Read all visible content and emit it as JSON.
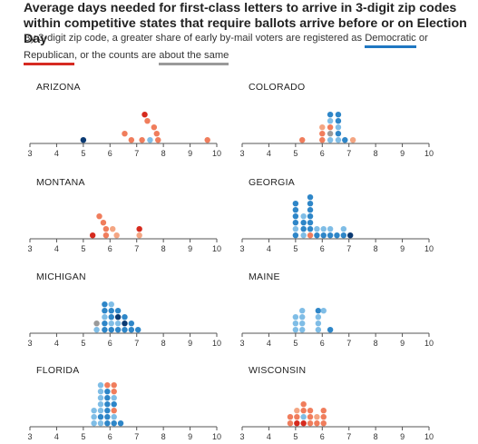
{
  "title": "Average days needed for first-class letters to arrive in 3-digit zip codes within competitive states that require ballots arrive before or on Election Day",
  "subtitle": {
    "text_1": "By 3-digit zip code, a greater share of early by-mail voters are registered as ",
    "dem_label": "Democratic",
    "text_2": " or ",
    "rep_label": "Republican",
    "text_3": ", or the counts are ",
    "same_label": "about the same"
  },
  "colors": {
    "dem_strong": "#0b3a73",
    "dem": "#2e86c8",
    "dem_light": "#7fbde6",
    "same": "#9a9a9a",
    "rep_light": "#f4a582",
    "rep": "#f07d5c",
    "rep_strong": "#d62a1e",
    "axis": "#555555"
  },
  "chart_data": [
    {
      "type": "scatter",
      "title": "ARIZONA",
      "xlim": [
        3,
        10
      ],
      "xticks": [
        "3",
        "4",
        "5",
        "6",
        "7",
        "8",
        "9",
        "10"
      ],
      "points": [
        {
          "x": 5.0,
          "stack": 0,
          "group": "dem_strong"
        },
        {
          "x": 6.55,
          "stack": 1,
          "group": "rep"
        },
        {
          "x": 6.8,
          "stack": 0,
          "group": "rep"
        },
        {
          "x": 7.2,
          "stack": 0,
          "group": "rep"
        },
        {
          "x": 7.5,
          "stack": 0,
          "group": "dem_light"
        },
        {
          "x": 7.8,
          "stack": 0,
          "group": "rep"
        },
        {
          "x": 7.75,
          "stack": 1,
          "group": "rep"
        },
        {
          "x": 7.65,
          "stack": 2,
          "group": "rep"
        },
        {
          "x": 7.4,
          "stack": 3,
          "group": "rep"
        },
        {
          "x": 7.3,
          "stack": 4,
          "group": "rep_strong"
        },
        {
          "x": 9.65,
          "stack": 0,
          "group": "rep"
        }
      ]
    },
    {
      "type": "scatter",
      "title": "COLORADO",
      "xlim": [
        3,
        10
      ],
      "xticks": [
        "3",
        "4",
        "5",
        "6",
        "7",
        "8",
        "9",
        "10"
      ],
      "points": [
        {
          "x": 5.25,
          "stack": 0,
          "group": "rep"
        },
        {
          "x": 6.0,
          "stack": 0,
          "group": "rep"
        },
        {
          "x": 6.0,
          "stack": 1,
          "group": "rep"
        },
        {
          "x": 6.0,
          "stack": 2,
          "group": "rep_light"
        },
        {
          "x": 6.3,
          "stack": 0,
          "group": "dem_light"
        },
        {
          "x": 6.3,
          "stack": 1,
          "group": "same"
        },
        {
          "x": 6.3,
          "stack": 2,
          "group": "rep"
        },
        {
          "x": 6.3,
          "stack": 3,
          "group": "dem_light"
        },
        {
          "x": 6.3,
          "stack": 4,
          "group": "dem"
        },
        {
          "x": 6.6,
          "stack": 0,
          "group": "dem_light"
        },
        {
          "x": 6.6,
          "stack": 1,
          "group": "dem"
        },
        {
          "x": 6.6,
          "stack": 2,
          "group": "dem_light"
        },
        {
          "x": 6.6,
          "stack": 3,
          "group": "dem"
        },
        {
          "x": 6.6,
          "stack": 4,
          "group": "dem"
        },
        {
          "x": 6.85,
          "stack": 0,
          "group": "dem"
        },
        {
          "x": 7.15,
          "stack": 0,
          "group": "rep_light"
        }
      ]
    },
    {
      "type": "scatter",
      "title": "MONTANA",
      "xlim": [
        3,
        10
      ],
      "xticks": [
        "3",
        "4",
        "5",
        "6",
        "7",
        "8",
        "9",
        "10"
      ],
      "points": [
        {
          "x": 5.35,
          "stack": 0,
          "group": "rep_strong"
        },
        {
          "x": 5.85,
          "stack": 0,
          "group": "rep"
        },
        {
          "x": 5.85,
          "stack": 1,
          "group": "rep"
        },
        {
          "x": 5.75,
          "stack": 2,
          "group": "rep"
        },
        {
          "x": 5.6,
          "stack": 3,
          "group": "rep"
        },
        {
          "x": 6.25,
          "stack": 0,
          "group": "rep_light"
        },
        {
          "x": 6.1,
          "stack": 1,
          "group": "rep_light"
        },
        {
          "x": 7.1,
          "stack": 0,
          "group": "rep_light"
        },
        {
          "x": 7.1,
          "stack": 1,
          "group": "rep_strong"
        }
      ]
    },
    {
      "type": "scatter",
      "title": "GEORGIA",
      "xlim": [
        3,
        10
      ],
      "xticks": [
        "3",
        "4",
        "5",
        "6",
        "7",
        "8",
        "9",
        "10"
      ],
      "points": [
        {
          "x": 5.0,
          "stack": 0,
          "group": "dem"
        },
        {
          "x": 5.0,
          "stack": 1,
          "group": "dem_light"
        },
        {
          "x": 5.0,
          "stack": 2,
          "group": "dem"
        },
        {
          "x": 5.0,
          "stack": 3,
          "group": "dem"
        },
        {
          "x": 5.0,
          "stack": 4,
          "group": "dem"
        },
        {
          "x": 5.0,
          "stack": 5,
          "group": "dem"
        },
        {
          "x": 5.3,
          "stack": 0,
          "group": "dem_light"
        },
        {
          "x": 5.3,
          "stack": 1,
          "group": "dem"
        },
        {
          "x": 5.3,
          "stack": 2,
          "group": "dem"
        },
        {
          "x": 5.3,
          "stack": 3,
          "group": "dem_light"
        },
        {
          "x": 5.55,
          "stack": 0,
          "group": "rep"
        },
        {
          "x": 5.55,
          "stack": 1,
          "group": "dem"
        },
        {
          "x": 5.55,
          "stack": 2,
          "group": "dem"
        },
        {
          "x": 5.55,
          "stack": 3,
          "group": "dem"
        },
        {
          "x": 5.55,
          "stack": 4,
          "group": "dem"
        },
        {
          "x": 5.55,
          "stack": 5,
          "group": "dem"
        },
        {
          "x": 5.55,
          "stack": 6,
          "group": "dem"
        },
        {
          "x": 5.8,
          "stack": 0,
          "group": "dem"
        },
        {
          "x": 5.8,
          "stack": 1,
          "group": "dem_light"
        },
        {
          "x": 6.05,
          "stack": 0,
          "group": "dem"
        },
        {
          "x": 6.05,
          "stack": 1,
          "group": "dem_light"
        },
        {
          "x": 6.3,
          "stack": 0,
          "group": "dem"
        },
        {
          "x": 6.3,
          "stack": 1,
          "group": "dem_light"
        },
        {
          "x": 6.55,
          "stack": 0,
          "group": "dem"
        },
        {
          "x": 6.8,
          "stack": 0,
          "group": "dem"
        },
        {
          "x": 6.8,
          "stack": 1,
          "group": "dem_light"
        },
        {
          "x": 7.05,
          "stack": 0,
          "group": "dem_strong"
        }
      ]
    },
    {
      "type": "scatter",
      "title": "MICHIGAN",
      "xlim": [
        3,
        10
      ],
      "xticks": [
        "3",
        "4",
        "5",
        "6",
        "7",
        "8",
        "9",
        "10"
      ],
      "points": [
        {
          "x": 5.5,
          "stack": 0,
          "group": "dem_light"
        },
        {
          "x": 5.5,
          "stack": 1,
          "group": "same"
        },
        {
          "x": 5.8,
          "stack": 0,
          "group": "dem"
        },
        {
          "x": 5.8,
          "stack": 1,
          "group": "dem"
        },
        {
          "x": 5.8,
          "stack": 2,
          "group": "dem_light"
        },
        {
          "x": 5.8,
          "stack": 3,
          "group": "dem"
        },
        {
          "x": 5.8,
          "stack": 4,
          "group": "dem"
        },
        {
          "x": 6.05,
          "stack": 0,
          "group": "dem"
        },
        {
          "x": 6.05,
          "stack": 1,
          "group": "dem_light"
        },
        {
          "x": 6.05,
          "stack": 2,
          "group": "dem"
        },
        {
          "x": 6.05,
          "stack": 3,
          "group": "dem"
        },
        {
          "x": 6.05,
          "stack": 4,
          "group": "dem_light"
        },
        {
          "x": 6.3,
          "stack": 0,
          "group": "dem"
        },
        {
          "x": 6.3,
          "stack": 1,
          "group": "dem_light"
        },
        {
          "x": 6.3,
          "stack": 2,
          "group": "dem_strong"
        },
        {
          "x": 6.3,
          "stack": 3,
          "group": "dem"
        },
        {
          "x": 6.55,
          "stack": 0,
          "group": "dem"
        },
        {
          "x": 6.55,
          "stack": 1,
          "group": "dem_strong"
        },
        {
          "x": 6.55,
          "stack": 2,
          "group": "dem"
        },
        {
          "x": 6.8,
          "stack": 0,
          "group": "dem"
        },
        {
          "x": 6.8,
          "stack": 1,
          "group": "dem"
        },
        {
          "x": 7.05,
          "stack": 0,
          "group": "dem"
        }
      ]
    },
    {
      "type": "scatter",
      "title": "MAINE",
      "xlim": [
        3,
        10
      ],
      "xticks": [
        "3",
        "4",
        "5",
        "6",
        "7",
        "8",
        "9",
        "10"
      ],
      "points": [
        {
          "x": 5.0,
          "stack": 0,
          "group": "dem_light"
        },
        {
          "x": 5.0,
          "stack": 1,
          "group": "dem_light"
        },
        {
          "x": 5.0,
          "stack": 2,
          "group": "dem_light"
        },
        {
          "x": 5.25,
          "stack": 0,
          "group": "dem_light"
        },
        {
          "x": 5.25,
          "stack": 1,
          "group": "dem_light"
        },
        {
          "x": 5.25,
          "stack": 2,
          "group": "dem_light"
        },
        {
          "x": 5.25,
          "stack": 3,
          "group": "dem_light"
        },
        {
          "x": 5.85,
          "stack": 0,
          "group": "dem_light"
        },
        {
          "x": 5.85,
          "stack": 1,
          "group": "dem_light"
        },
        {
          "x": 5.85,
          "stack": 2,
          "group": "dem_light"
        },
        {
          "x": 5.85,
          "stack": 3,
          "group": "dem"
        },
        {
          "x": 6.05,
          "stack": 3,
          "group": "dem_light"
        },
        {
          "x": 6.3,
          "stack": 0,
          "group": "dem"
        }
      ]
    },
    {
      "type": "scatter",
      "title": "FLORIDA",
      "xlim": [
        3,
        10
      ],
      "xticks": [
        "3",
        "4",
        "5",
        "6",
        "7",
        "8",
        "9",
        "10"
      ],
      "points": [
        {
          "x": 5.4,
          "stack": 0,
          "group": "dem_light"
        },
        {
          "x": 5.4,
          "stack": 1,
          "group": "dem_light"
        },
        {
          "x": 5.4,
          "stack": 2,
          "group": "dem_light"
        },
        {
          "x": 5.65,
          "stack": 0,
          "group": "dem_light"
        },
        {
          "x": 5.65,
          "stack": 1,
          "group": "dem"
        },
        {
          "x": 5.65,
          "stack": 2,
          "group": "dem_light"
        },
        {
          "x": 5.65,
          "stack": 3,
          "group": "dem_light"
        },
        {
          "x": 5.65,
          "stack": 4,
          "group": "dem_light"
        },
        {
          "x": 5.65,
          "stack": 5,
          "group": "dem_light"
        },
        {
          "x": 5.65,
          "stack": 6,
          "group": "dem_light"
        },
        {
          "x": 5.9,
          "stack": 0,
          "group": "dem"
        },
        {
          "x": 5.9,
          "stack": 1,
          "group": "dem"
        },
        {
          "x": 5.9,
          "stack": 2,
          "group": "dem"
        },
        {
          "x": 5.9,
          "stack": 3,
          "group": "dem"
        },
        {
          "x": 5.9,
          "stack": 4,
          "group": "dem"
        },
        {
          "x": 5.9,
          "stack": 5,
          "group": "dem"
        },
        {
          "x": 5.9,
          "stack": 6,
          "group": "rep"
        },
        {
          "x": 6.15,
          "stack": 0,
          "group": "dem"
        },
        {
          "x": 6.15,
          "stack": 1,
          "group": "dem_light"
        },
        {
          "x": 6.15,
          "stack": 2,
          "group": "rep"
        },
        {
          "x": 6.15,
          "stack": 3,
          "group": "dem"
        },
        {
          "x": 6.15,
          "stack": 4,
          "group": "dem_light"
        },
        {
          "x": 6.15,
          "stack": 5,
          "group": "rep"
        },
        {
          "x": 6.15,
          "stack": 6,
          "group": "rep"
        },
        {
          "x": 6.4,
          "stack": 0,
          "group": "dem"
        }
      ]
    },
    {
      "type": "scatter",
      "title": "WISCONSIN",
      "xlim": [
        3,
        10
      ],
      "xticks": [
        "3",
        "4",
        "5",
        "6",
        "7",
        "8",
        "9",
        "10"
      ],
      "points": [
        {
          "x": 4.8,
          "stack": 0,
          "group": "rep"
        },
        {
          "x": 4.8,
          "stack": 1,
          "group": "rep"
        },
        {
          "x": 5.05,
          "stack": 0,
          "group": "rep_strong"
        },
        {
          "x": 5.05,
          "stack": 1,
          "group": "rep"
        },
        {
          "x": 5.05,
          "stack": 2,
          "group": "rep_light"
        },
        {
          "x": 5.3,
          "stack": 0,
          "group": "rep_strong"
        },
        {
          "x": 5.3,
          "stack": 1,
          "group": "dem_light"
        },
        {
          "x": 5.3,
          "stack": 2,
          "group": "rep"
        },
        {
          "x": 5.3,
          "stack": 3,
          "group": "rep"
        },
        {
          "x": 5.55,
          "stack": 0,
          "group": "rep"
        },
        {
          "x": 5.55,
          "stack": 1,
          "group": "rep"
        },
        {
          "x": 5.55,
          "stack": 2,
          "group": "rep"
        },
        {
          "x": 5.8,
          "stack": 0,
          "group": "rep"
        },
        {
          "x": 5.8,
          "stack": 1,
          "group": "rep_light"
        },
        {
          "x": 6.05,
          "stack": 0,
          "group": "rep"
        },
        {
          "x": 6.05,
          "stack": 1,
          "group": "rep"
        },
        {
          "x": 6.05,
          "stack": 2,
          "group": "rep"
        }
      ]
    }
  ]
}
